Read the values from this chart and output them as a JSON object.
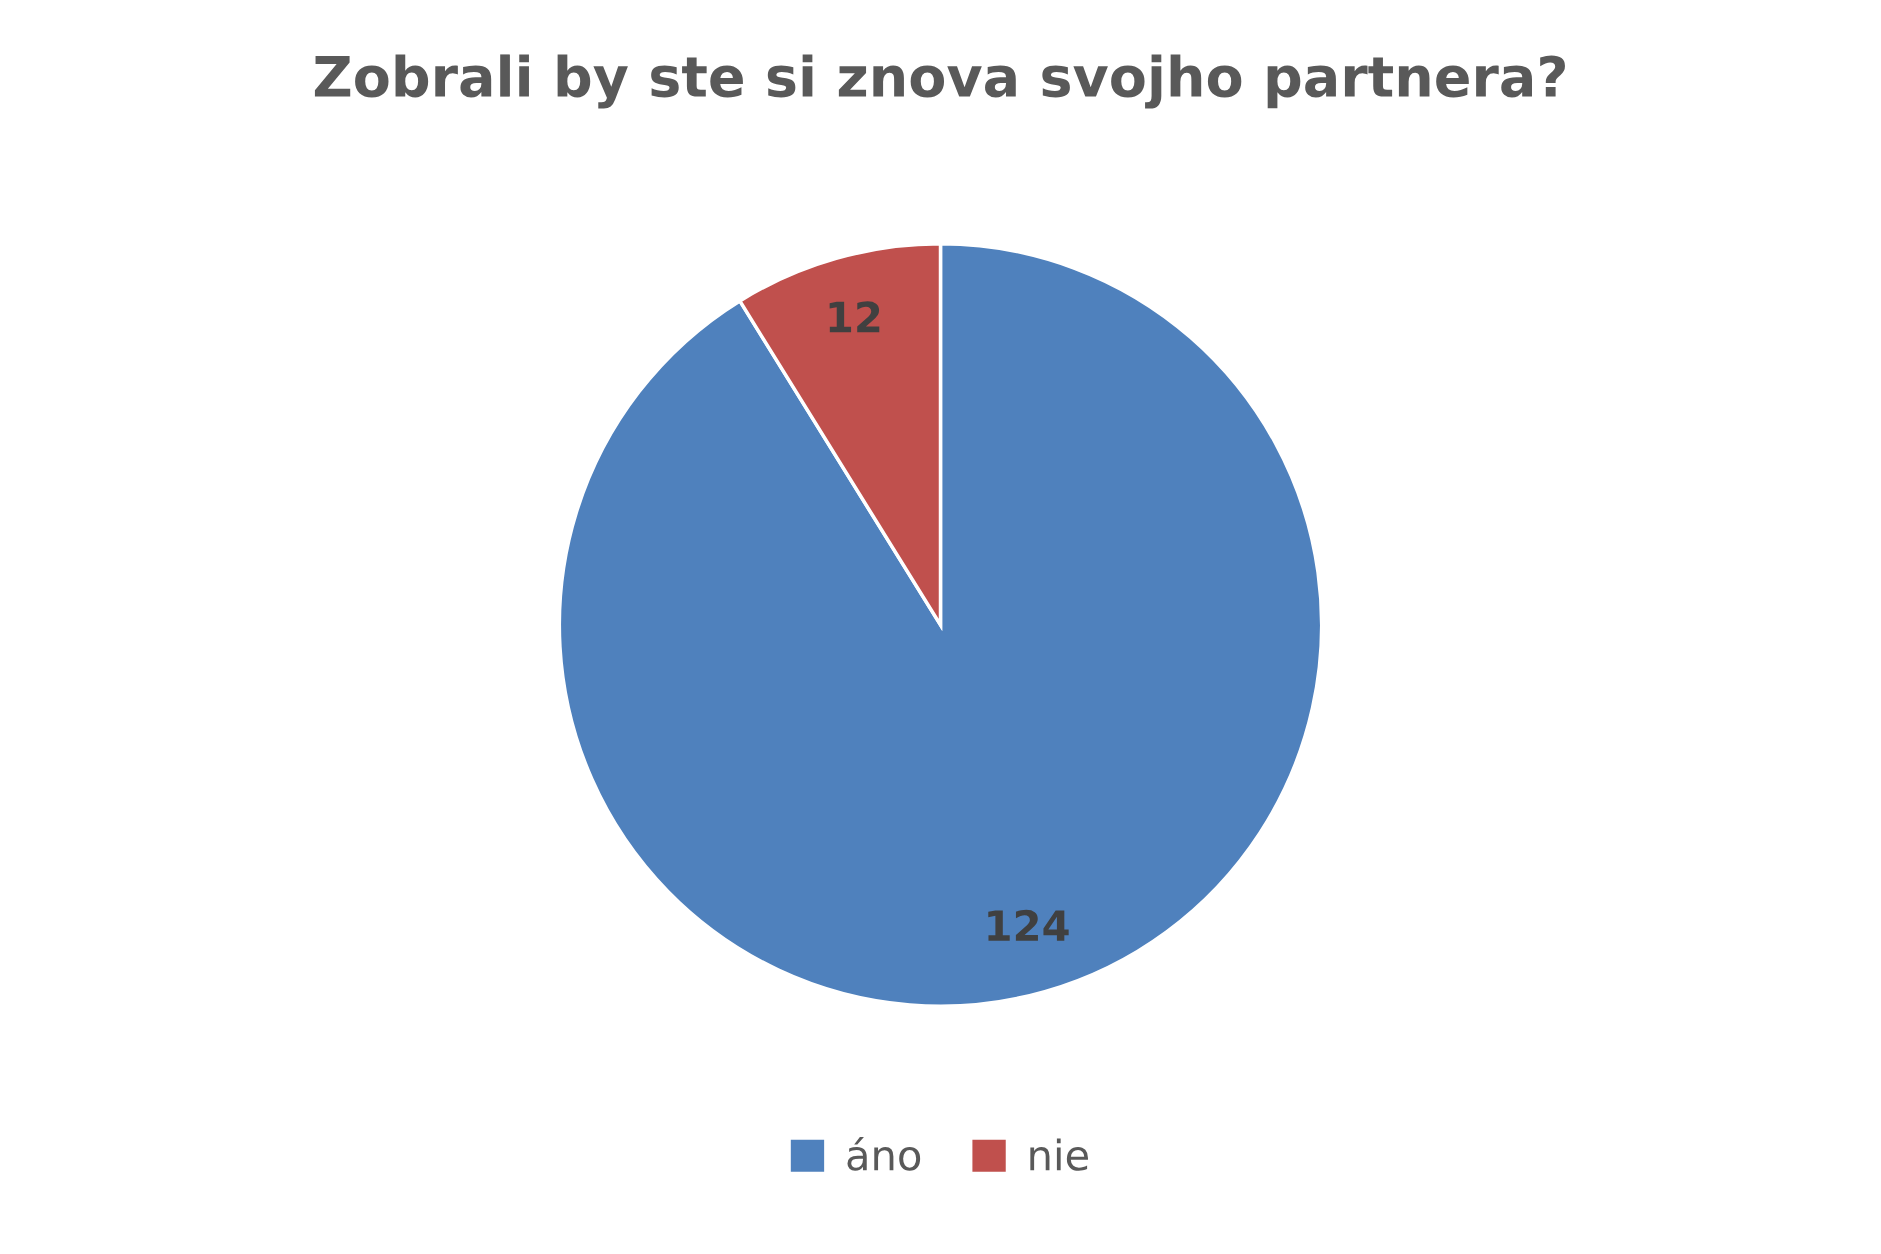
{
  "chart_data": {
    "type": "pie",
    "title": "Zobrali by ste si znova svojho partnera?",
    "categories": [
      "áno",
      "nie"
    ],
    "values": [
      124,
      12
    ],
    "colors": [
      "#4f81bd",
      "#c0504d"
    ],
    "data_labels": true,
    "legend": "bottom"
  }
}
